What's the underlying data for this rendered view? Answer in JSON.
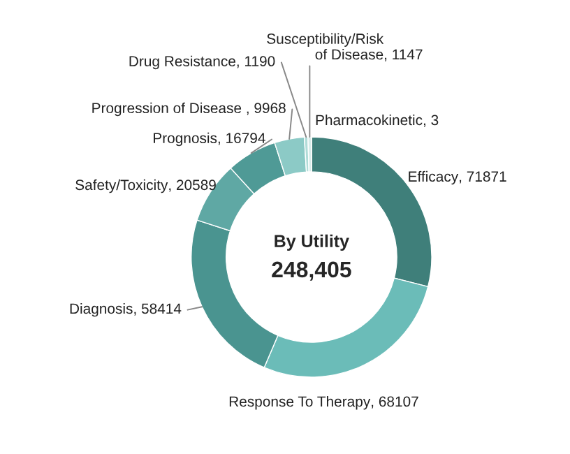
{
  "chart_data": {
    "type": "donut",
    "title": "By Utility",
    "annotations": [
      "248,405"
    ],
    "categories": [
      "Efficacy",
      "Response To Therapy",
      "Diagnosis",
      "Safety/Toxicity",
      "Prognosis",
      "Progression of Disease ",
      "Drug Resistance",
      "Susceptibility/Risk\nof Disease",
      "Pharmacokinetic"
    ],
    "values": [
      71871,
      68107,
      58414,
      20589,
      16794,
      9968,
      1190,
      1147,
      3
    ],
    "value_labels": [
      ", 71871",
      ", 68107",
      ", 58414",
      ", 20589",
      ", 16794",
      ", 9968",
      ", 1190",
      ", 1147",
      ", 3"
    ],
    "colors": [
      "#3f7f7a",
      "#6bbcb8",
      "#4a9490",
      "#5fa8a4",
      "#4f9a96",
      "#8ccac6",
      "#b0dcd8",
      "#d8ecea",
      "#e8f4f2"
    ]
  }
}
